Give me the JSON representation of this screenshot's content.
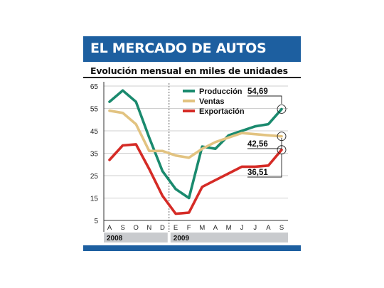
{
  "title": "EL MERCADO DE AUTOS",
  "subtitle": "Evolución mensual en miles de unidades",
  "colors": {
    "title_bg": "#1d5fa0",
    "year_band": "#c9cbce",
    "bottom_bar": "#1d5fa0"
  },
  "chart_data": {
    "type": "line",
    "x": [
      "A",
      "S",
      "O",
      "N",
      "D",
      "E",
      "F",
      "M",
      "A",
      "M",
      "J",
      "J",
      "A",
      "S"
    ],
    "years": [
      {
        "label": "2008",
        "from": 0,
        "to": 4
      },
      {
        "label": "2009",
        "from": 5,
        "to": 13
      }
    ],
    "series": [
      {
        "name": "Producción",
        "color": "#1a8a6e",
        "values": [
          58,
          63,
          58,
          42,
          27,
          19,
          15,
          38,
          37,
          43,
          45,
          47,
          48,
          54.69
        ]
      },
      {
        "name": "Ventas",
        "color": "#e2c381",
        "values": [
          54,
          53,
          48,
          36,
          36,
          34,
          33,
          37,
          40,
          42,
          44,
          43.5,
          43,
          42.56
        ]
      },
      {
        "name": "Exportación",
        "color": "#d52b26",
        "values": [
          32,
          38.5,
          39,
          28,
          16,
          8,
          8.5,
          20,
          23,
          26,
          29,
          29,
          29.5,
          36.51
        ]
      }
    ],
    "end_labels": [
      "54,69",
      "42,56",
      "36,51"
    ],
    "yticks": [
      "65",
      "55",
      "45",
      "35",
      "25",
      "15",
      "5"
    ],
    "ylim": [
      5,
      65
    ],
    "grid": true,
    "legend": "top-center"
  }
}
